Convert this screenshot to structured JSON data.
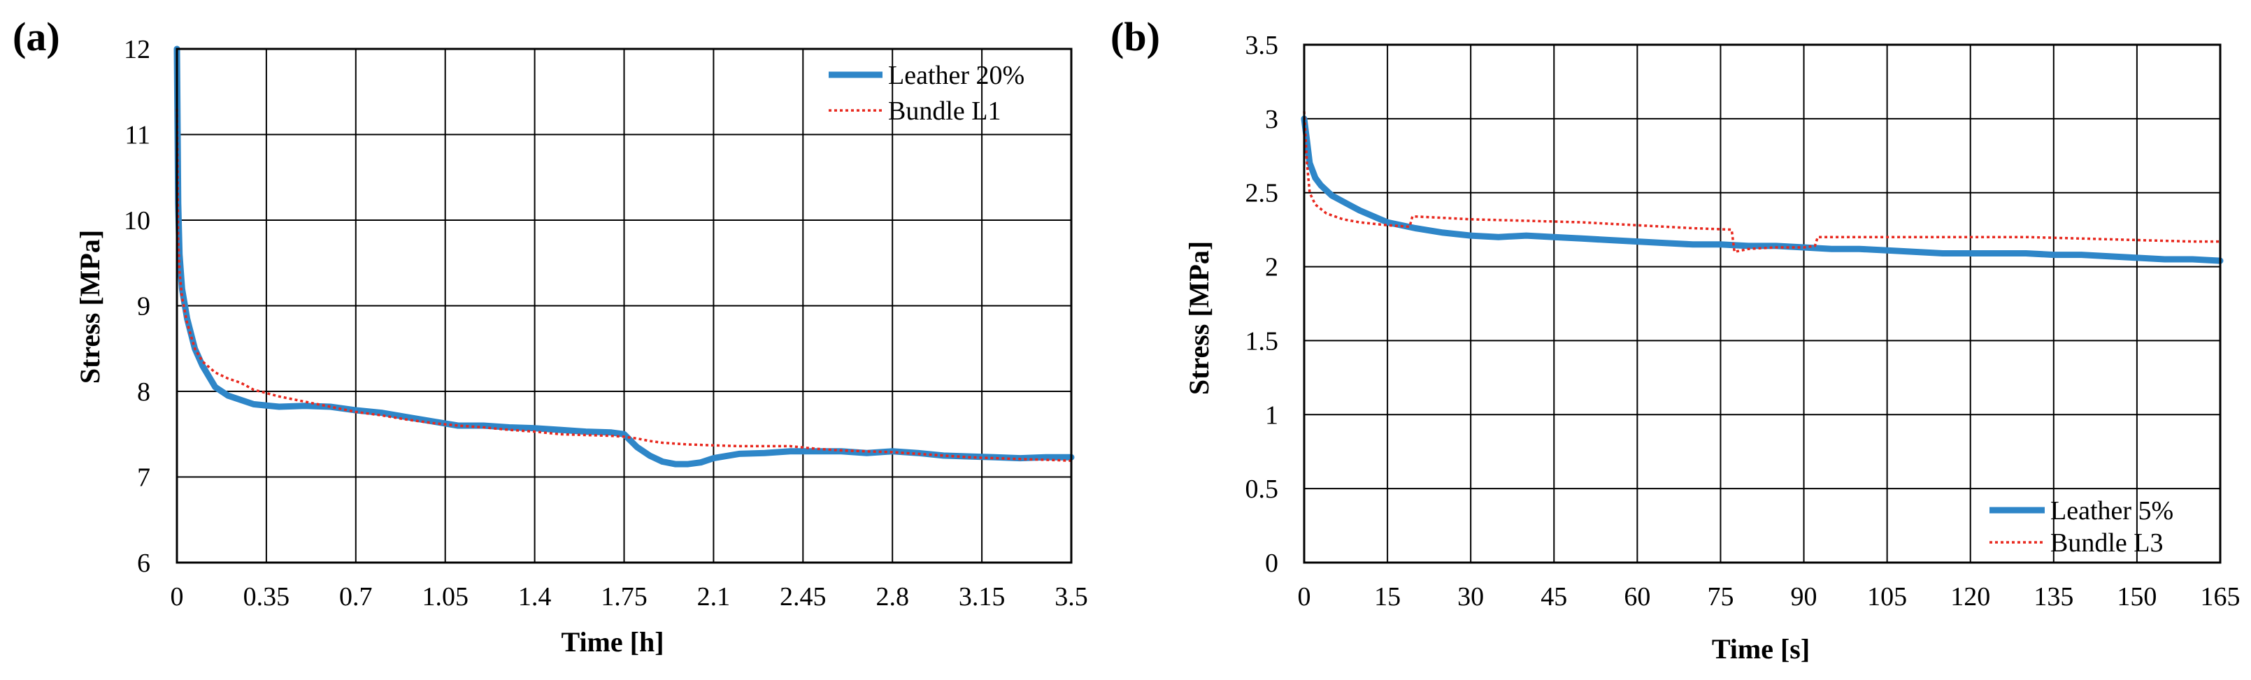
{
  "chart_data": [
    {
      "type": "line",
      "panel_label": "(a)",
      "xlabel": "Time  [h]",
      "ylabel": "Stress  [MPa]",
      "xlim": [
        0,
        3.5
      ],
      "ylim": [
        6,
        12
      ],
      "x_ticks": [
        0,
        0.35,
        0.7,
        1.05,
        1.4,
        1.75,
        2.1,
        2.45,
        2.8,
        3.15,
        3.5
      ],
      "x_tick_labels": [
        "0",
        "0.35",
        "0.7",
        "1.05",
        "1.4",
        "1.75",
        "2.1",
        "2.45",
        "2.8",
        "3.15",
        "3.5"
      ],
      "y_ticks": [
        6,
        7,
        8,
        9,
        10,
        11,
        12
      ],
      "y_tick_labels": [
        "6",
        "7",
        "8",
        "9",
        "10",
        "11",
        "12"
      ],
      "grid": true,
      "legend_position": "top-right",
      "series": [
        {
          "name": "Leather 20%",
          "style": "solid-thick",
          "color": "#2E86C8",
          "points": [
            [
              0,
              12
            ],
            [
              0.005,
              10.2
            ],
            [
              0.01,
              9.6
            ],
            [
              0.02,
              9.2
            ],
            [
              0.04,
              8.85
            ],
            [
              0.07,
              8.5
            ],
            [
              0.1,
              8.3
            ],
            [
              0.15,
              8.05
            ],
            [
              0.2,
              7.95
            ],
            [
              0.3,
              7.85
            ],
            [
              0.4,
              7.82
            ],
            [
              0.5,
              7.83
            ],
            [
              0.6,
              7.82
            ],
            [
              0.7,
              7.78
            ],
            [
              0.8,
              7.75
            ],
            [
              0.9,
              7.7
            ],
            [
              1.0,
              7.65
            ],
            [
              1.1,
              7.6
            ],
            [
              1.2,
              7.6
            ],
            [
              1.3,
              7.58
            ],
            [
              1.4,
              7.57
            ],
            [
              1.5,
              7.55
            ],
            [
              1.6,
              7.53
            ],
            [
              1.7,
              7.52
            ],
            [
              1.75,
              7.5
            ],
            [
              1.8,
              7.35
            ],
            [
              1.85,
              7.25
            ],
            [
              1.9,
              7.18
            ],
            [
              1.95,
              7.15
            ],
            [
              2.0,
              7.15
            ],
            [
              2.05,
              7.17
            ],
            [
              2.1,
              7.22
            ],
            [
              2.2,
              7.27
            ],
            [
              2.3,
              7.28
            ],
            [
              2.4,
              7.3
            ],
            [
              2.5,
              7.3
            ],
            [
              2.6,
              7.3
            ],
            [
              2.7,
              7.28
            ],
            [
              2.8,
              7.3
            ],
            [
              2.9,
              7.28
            ],
            [
              3.0,
              7.25
            ],
            [
              3.1,
              7.24
            ],
            [
              3.2,
              7.23
            ],
            [
              3.3,
              7.22
            ],
            [
              3.4,
              7.23
            ],
            [
              3.5,
              7.23
            ]
          ]
        },
        {
          "name": "Bundle L1",
          "style": "dotted",
          "color": "#E8281E",
          "points": [
            [
              0,
              11.3
            ],
            [
              0.005,
              9.8
            ],
            [
              0.01,
              9.4
            ],
            [
              0.02,
              9.1
            ],
            [
              0.04,
              8.8
            ],
            [
              0.07,
              8.5
            ],
            [
              0.1,
              8.35
            ],
            [
              0.15,
              8.22
            ],
            [
              0.2,
              8.15
            ],
            [
              0.25,
              8.1
            ],
            [
              0.3,
              8.02
            ],
            [
              0.4,
              7.94
            ],
            [
              0.5,
              7.88
            ],
            [
              0.6,
              7.82
            ],
            [
              0.7,
              7.76
            ],
            [
              0.8,
              7.72
            ],
            [
              0.9,
              7.67
            ],
            [
              1.0,
              7.63
            ],
            [
              1.1,
              7.6
            ],
            [
              1.2,
              7.58
            ],
            [
              1.3,
              7.55
            ],
            [
              1.4,
              7.53
            ],
            [
              1.5,
              7.5
            ],
            [
              1.6,
              7.49
            ],
            [
              1.7,
              7.48
            ],
            [
              1.75,
              7.47
            ],
            [
              1.8,
              7.45
            ],
            [
              1.85,
              7.42
            ],
            [
              1.9,
              7.4
            ],
            [
              2.0,
              7.38
            ],
            [
              2.1,
              7.37
            ],
            [
              2.2,
              7.36
            ],
            [
              2.3,
              7.36
            ],
            [
              2.4,
              7.36
            ],
            [
              2.5,
              7.33
            ],
            [
              2.6,
              7.31
            ],
            [
              2.7,
              7.3
            ],
            [
              2.8,
              7.29
            ],
            [
              2.9,
              7.27
            ],
            [
              3.0,
              7.25
            ],
            [
              3.1,
              7.23
            ],
            [
              3.2,
              7.22
            ],
            [
              3.3,
              7.21
            ],
            [
              3.4,
              7.2
            ],
            [
              3.5,
              7.19
            ]
          ]
        }
      ]
    },
    {
      "type": "line",
      "panel_label": "(b)",
      "xlabel": "Time [s]",
      "ylabel": "Stress  [MPa]",
      "xlim": [
        0,
        165
      ],
      "ylim": [
        0,
        3.5
      ],
      "x_ticks": [
        0,
        15,
        30,
        45,
        60,
        75,
        90,
        105,
        120,
        135,
        150,
        165
      ],
      "x_tick_labels": [
        "0",
        "15",
        "30",
        "45",
        "60",
        "75",
        "90",
        "105",
        "120",
        "135",
        "150",
        "165"
      ],
      "y_ticks": [
        0,
        0.5,
        1,
        1.5,
        2,
        2.5,
        3,
        3.5
      ],
      "y_tick_labels": [
        "0",
        "0.5",
        "1",
        "1.5",
        "2",
        "2.5",
        "3",
        "3.5"
      ],
      "grid": true,
      "legend_position": "bottom-right",
      "series": [
        {
          "name": "Leather 5%",
          "style": "solid-thick",
          "color": "#2E86C8",
          "points": [
            [
              0,
              3.0
            ],
            [
              0.5,
              2.85
            ],
            [
              1,
              2.7
            ],
            [
              2,
              2.6
            ],
            [
              3,
              2.55
            ],
            [
              5,
              2.48
            ],
            [
              8,
              2.42
            ],
            [
              10,
              2.38
            ],
            [
              15,
              2.3
            ],
            [
              20,
              2.26
            ],
            [
              25,
              2.23
            ],
            [
              30,
              2.21
            ],
            [
              35,
              2.2
            ],
            [
              40,
              2.21
            ],
            [
              45,
              2.2
            ],
            [
              50,
              2.19
            ],
            [
              55,
              2.18
            ],
            [
              60,
              2.17
            ],
            [
              65,
              2.16
            ],
            [
              70,
              2.15
            ],
            [
              75,
              2.15
            ],
            [
              80,
              2.14
            ],
            [
              85,
              2.14
            ],
            [
              90,
              2.13
            ],
            [
              95,
              2.12
            ],
            [
              100,
              2.12
            ],
            [
              105,
              2.11
            ],
            [
              110,
              2.1
            ],
            [
              115,
              2.09
            ],
            [
              120,
              2.09
            ],
            [
              125,
              2.09
            ],
            [
              130,
              2.09
            ],
            [
              135,
              2.08
            ],
            [
              140,
              2.08
            ],
            [
              145,
              2.07
            ],
            [
              150,
              2.06
            ],
            [
              155,
              2.05
            ],
            [
              160,
              2.05
            ],
            [
              165,
              2.04
            ]
          ]
        },
        {
          "name": "Bundle L3",
          "style": "dotted",
          "color": "#E8281E",
          "points": [
            [
              0,
              3.05
            ],
            [
              0.5,
              2.7
            ],
            [
              1,
              2.5
            ],
            [
              2,
              2.42
            ],
            [
              4,
              2.36
            ],
            [
              7,
              2.32
            ],
            [
              10,
              2.3
            ],
            [
              15,
              2.28
            ],
            [
              19,
              2.27
            ],
            [
              19.5,
              2.34
            ],
            [
              25,
              2.33
            ],
            [
              30,
              2.32
            ],
            [
              40,
              2.31
            ],
            [
              50,
              2.3
            ],
            [
              60,
              2.28
            ],
            [
              70,
              2.26
            ],
            [
              77,
              2.25
            ],
            [
              77.5,
              2.1
            ],
            [
              80,
              2.12
            ],
            [
              85,
              2.13
            ],
            [
              90,
              2.13
            ],
            [
              92,
              2.14
            ],
            [
              92.5,
              2.2
            ],
            [
              100,
              2.2
            ],
            [
              110,
              2.2
            ],
            [
              120,
              2.2
            ],
            [
              130,
              2.2
            ],
            [
              140,
              2.19
            ],
            [
              150,
              2.18
            ],
            [
              160,
              2.17
            ],
            [
              165,
              2.17
            ]
          ]
        }
      ]
    }
  ]
}
